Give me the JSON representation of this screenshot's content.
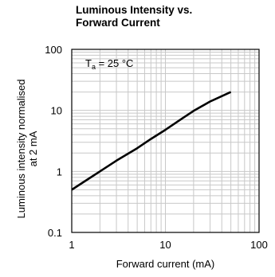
{
  "chart_data": {
    "type": "line",
    "title_line1": "Luminous Intensity vs.",
    "title_line2": "Forward Current",
    "xlabel": "Forward current (mA)",
    "ylabel_line1": "Luminous intensity normalised",
    "ylabel_line2": "at 2 mA",
    "xscale": "log",
    "yscale": "log",
    "xlim": [
      1,
      100
    ],
    "ylim": [
      0.1,
      100
    ],
    "grid": true,
    "x_ticks": [
      "1",
      "10",
      "100"
    ],
    "y_ticks": [
      "0.1",
      "1",
      "10",
      "100"
    ],
    "annotation": {
      "symbol": "T",
      "subscript": "a",
      "text": " = 25 °C"
    },
    "series": [
      {
        "x": [
          1,
          1.5,
          2,
          3,
          5,
          7,
          10,
          15,
          20,
          30,
          50
        ],
        "y": [
          0.5,
          0.75,
          1,
          1.5,
          2.4,
          3.4,
          4.8,
          7.3,
          9.8,
          14,
          20
        ]
      }
    ],
    "line_color": "#000000",
    "grid_color": "#c8c8c8"
  }
}
